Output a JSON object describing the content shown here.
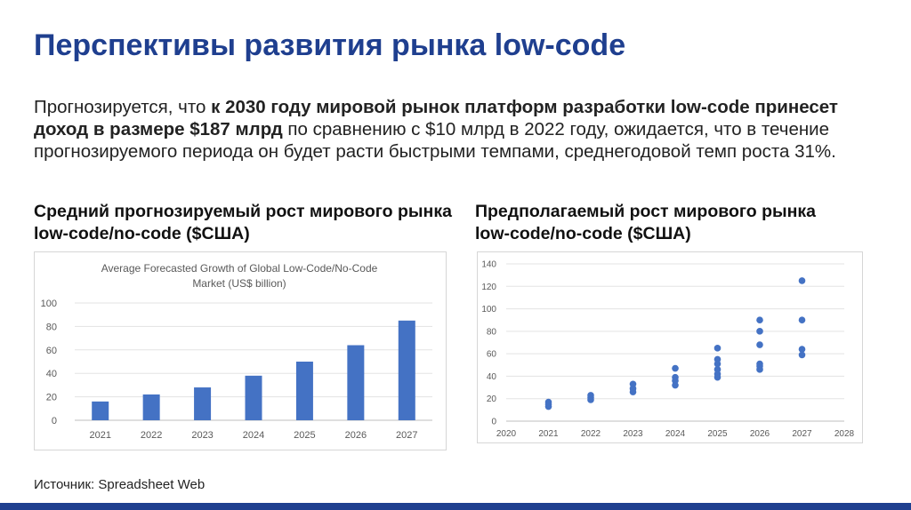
{
  "slide": {
    "title": "Перспективы развития рынка low-code",
    "intro": {
      "part1": "Прогнозируется, что ",
      "part2_bold": "к 2030 году мировой рынок платформ разработки low-code принесет доход в размере $187 млрд",
      "part3": " по сравнению с $10 млрд в 2022 году, ожидается, что в течение прогнозируемого периода он будет расти быстрыми темпами, среднегодовой темп роста 31%."
    },
    "left_heading": "Средний прогнозируемый рост мирового рынка low-code/no-code  ($США)",
    "right_heading": "Предполагаемый рост мирового рынка low-code/no-code  ($США)",
    "source": "Источник: Spreadsheet Web"
  },
  "colors": {
    "title": "#1f3f8f",
    "bar": "#4472c4",
    "point": "#4472c4",
    "bottom_bar": "#1f3f8f"
  },
  "chart_data": [
    {
      "type": "bar",
      "title": "Average Forecasted Growth of Global Low-Code/No-Code Market (US$ billion)",
      "title_lines": [
        "Average Forecasted Growth of Global Low-Code/No-Code",
        "Market (US$ billion)"
      ],
      "categories": [
        "2021",
        "2022",
        "2023",
        "2024",
        "2025",
        "2026",
        "2027"
      ],
      "values": [
        16,
        22,
        28,
        38,
        50,
        64,
        85
      ],
      "ylim": [
        0,
        100
      ],
      "yticks": [
        0,
        20,
        40,
        60,
        80,
        100
      ],
      "grid": true
    },
    {
      "type": "scatter",
      "xlim": [
        2020,
        2028
      ],
      "xticks": [
        2020,
        2021,
        2022,
        2023,
        2024,
        2025,
        2026,
        2027,
        2028
      ],
      "ylim": [
        0,
        140
      ],
      "yticks": [
        0,
        20,
        40,
        60,
        80,
        100,
        120,
        140
      ],
      "grid": true,
      "points": [
        {
          "x": 2021,
          "y": 13
        },
        {
          "x": 2021,
          "y": 15
        },
        {
          "x": 2021,
          "y": 17
        },
        {
          "x": 2022,
          "y": 19
        },
        {
          "x": 2022,
          "y": 21
        },
        {
          "x": 2022,
          "y": 23
        },
        {
          "x": 2023,
          "y": 26
        },
        {
          "x": 2023,
          "y": 29
        },
        {
          "x": 2023,
          "y": 33
        },
        {
          "x": 2024,
          "y": 32
        },
        {
          "x": 2024,
          "y": 36
        },
        {
          "x": 2024,
          "y": 39
        },
        {
          "x": 2024,
          "y": 47
        },
        {
          "x": 2025,
          "y": 39
        },
        {
          "x": 2025,
          "y": 42
        },
        {
          "x": 2025,
          "y": 46
        },
        {
          "x": 2025,
          "y": 51
        },
        {
          "x": 2025,
          "y": 55
        },
        {
          "x": 2025,
          "y": 65
        },
        {
          "x": 2026,
          "y": 46
        },
        {
          "x": 2026,
          "y": 49
        },
        {
          "x": 2026,
          "y": 51
        },
        {
          "x": 2026,
          "y": 68
        },
        {
          "x": 2026,
          "y": 80
        },
        {
          "x": 2026,
          "y": 90
        },
        {
          "x": 2027,
          "y": 59
        },
        {
          "x": 2027,
          "y": 64
        },
        {
          "x": 2027,
          "y": 90
        },
        {
          "x": 2027,
          "y": 125
        }
      ]
    }
  ]
}
